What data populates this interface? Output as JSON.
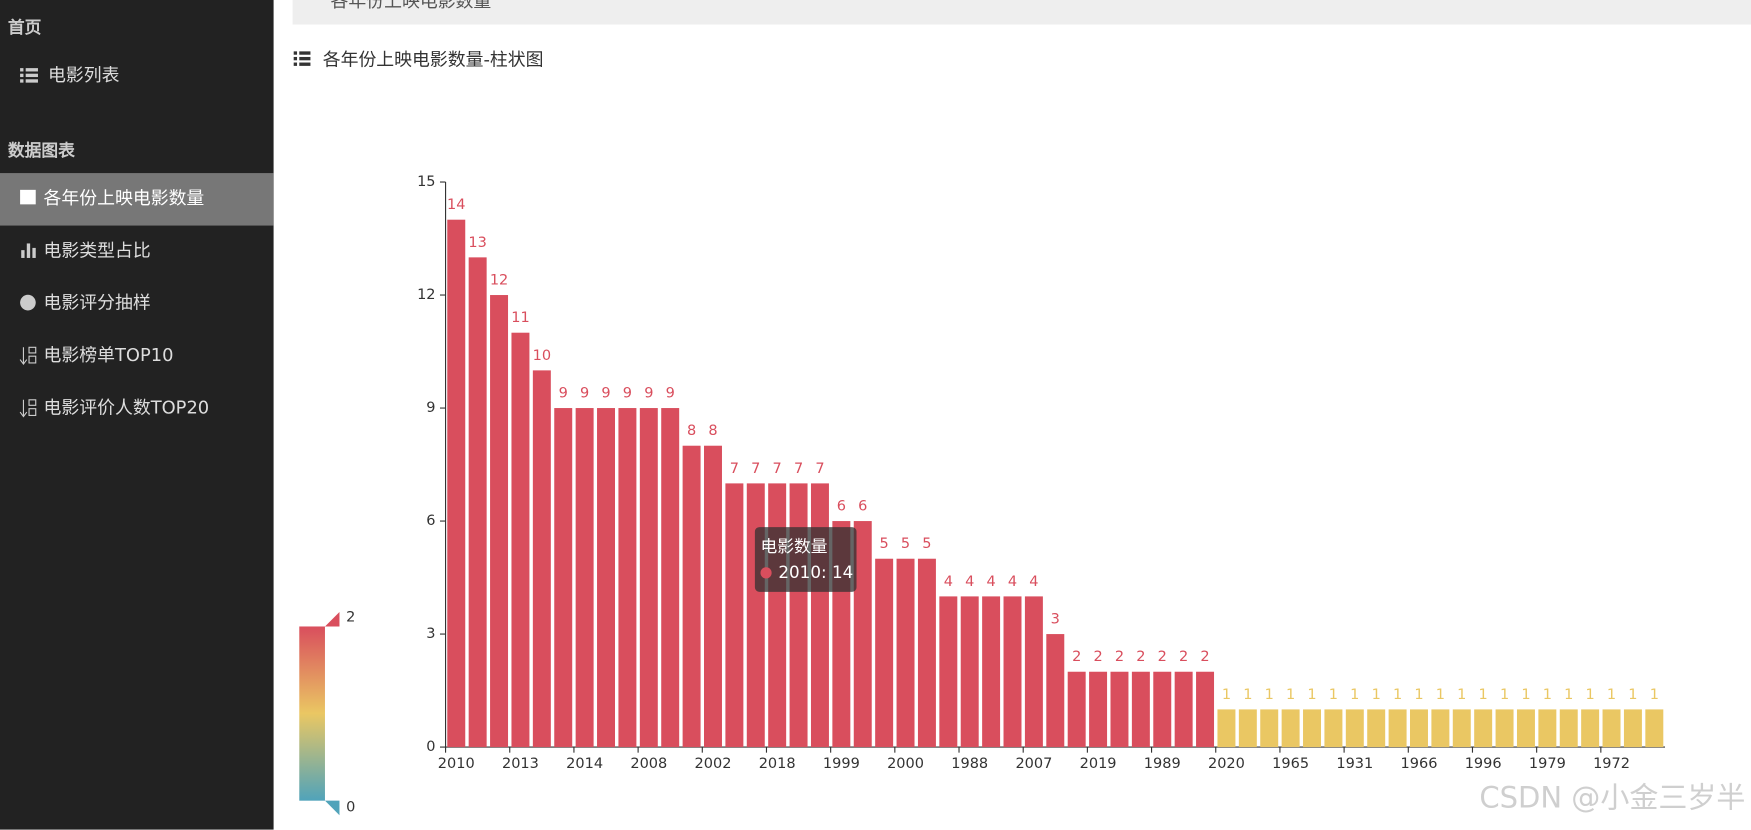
{
  "header": {
    "title": "各年份上映电影数量"
  },
  "sidebar": {
    "home": "首页",
    "movie_list": "电影列表",
    "section": "数据图表",
    "items": [
      "各年份上映电影数量",
      "电影类型占比",
      "电影评分抽样",
      "电影榜单TOP10",
      "电影评价人数TOP20"
    ]
  },
  "panel_title": "各年份上映电影数量-柱状图",
  "watermark": "CSDN @小金三岁半",
  "chart_data": {
    "type": "bar",
    "series_name": "电影数量",
    "categories": [
      "2010",
      null,
      null,
      "2013",
      null,
      null,
      "2014",
      null,
      null,
      "2008",
      null,
      null,
      "2002",
      null,
      null,
      "2018",
      null,
      null,
      "1999",
      null,
      null,
      "2000",
      null,
      null,
      "1988",
      null,
      null,
      "2007",
      null,
      null,
      "2019",
      null,
      null,
      "1989",
      null,
      null,
      "2020",
      null,
      null,
      "1965",
      null,
      null,
      "1931",
      null,
      null,
      "1966",
      null,
      null,
      "1996",
      null,
      null,
      "1979",
      null,
      null,
      "1972",
      null,
      null
    ],
    "values": [
      14,
      13,
      12,
      11,
      10,
      9,
      9,
      9,
      9,
      9,
      9,
      8,
      8,
      7,
      7,
      7,
      7,
      7,
      6,
      6,
      5,
      5,
      5,
      4,
      4,
      4,
      4,
      4,
      3,
      2,
      2,
      2,
      2,
      2,
      2,
      2,
      1,
      1,
      1,
      1,
      1,
      1,
      1,
      1,
      1,
      1,
      1,
      1,
      1,
      1,
      1,
      1,
      1,
      1,
      1,
      1,
      1
    ],
    "ylim": [
      0,
      15
    ],
    "yticks": [
      0,
      3,
      6,
      9,
      12,
      15
    ],
    "visual_map": {
      "min": 0,
      "max": 2,
      "colors": [
        "#50a3ba",
        "#eac763",
        "#d94e5d"
      ]
    },
    "tooltip": {
      "title": "电影数量",
      "text": "2010: 14"
    }
  }
}
